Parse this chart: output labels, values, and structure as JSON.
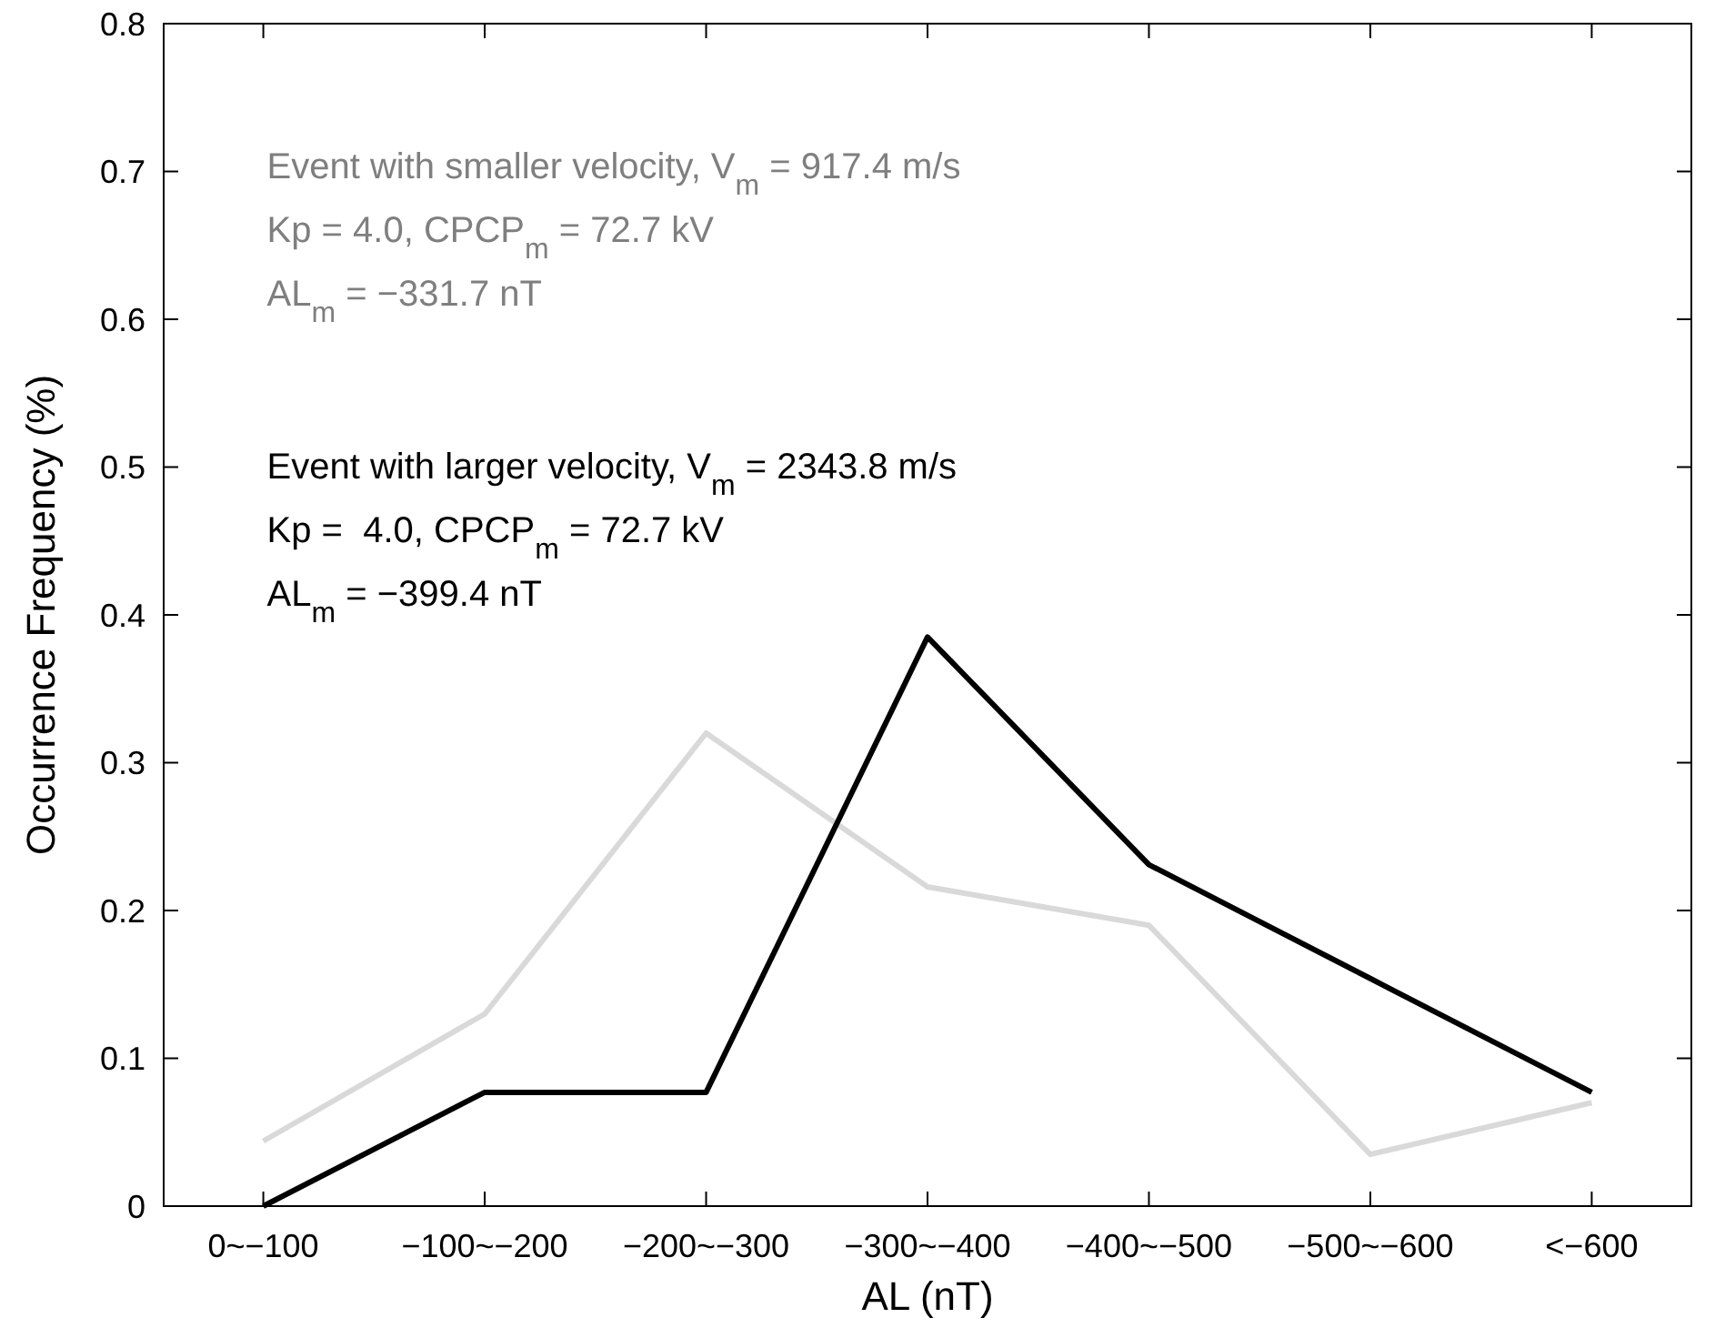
{
  "chart_data": {
    "type": "line",
    "xlabel": "AL (nT)",
    "ylabel": "Occurrence Frequency (%)",
    "categories": [
      "0~−100",
      "−100~−200",
      "−200~−300",
      "−300~−400",
      "−400~−500",
      "−500~−600",
      "<−600"
    ],
    "series": [
      {
        "color": "#d9d9d9",
        "values": [
          0.044,
          0.13,
          0.32,
          0.216,
          0.19,
          0.035,
          0.07
        ]
      },
      {
        "color": "#000000",
        "values": [
          0,
          0.077,
          0.077,
          0.385,
          0.231,
          0.154,
          0.077
        ]
      }
    ],
    "ylim": [
      0,
      0.8
    ],
    "yticks": [
      0,
      0.1,
      0.2,
      0.3,
      0.4,
      0.5,
      0.6,
      0.7,
      0.8
    ],
    "grid": false,
    "marker": "none",
    "line_style": "solid",
    "annotations": [
      "Event with smaller velocity, V$_{m}$ = 917.4 m/s",
      "Kp = 4.0, CPCP$_{m}$ = 72.7 kV",
      "AL$_{m}$ = −331.7 nT",
      "Event with larger velocity, V$_{m}$ = 2343.8 m/s",
      "Kp =  4.0, CPCP$_{m}$ = 72.7 kV",
      "AL$_{m}$ = −399.4 nT"
    ]
  }
}
